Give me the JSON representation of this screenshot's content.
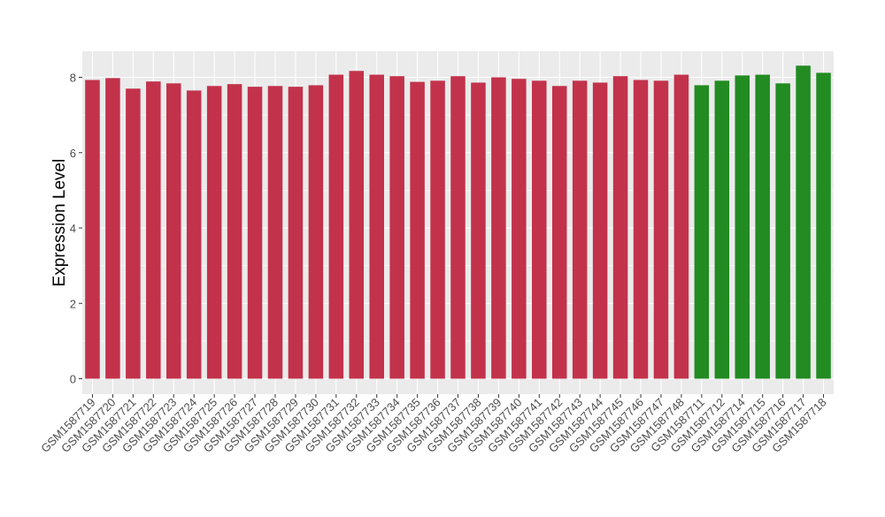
{
  "chart_data": {
    "type": "bar",
    "title": "",
    "xlabel": "",
    "ylabel": "Expression Level",
    "ylim": [
      0,
      8.7
    ],
    "yticks": [
      0,
      2,
      4,
      6,
      8
    ],
    "grid": true,
    "categories": [
      "GSM1587719",
      "GSM1587720",
      "GSM1587721",
      "GSM1587722",
      "GSM1587723",
      "GSM1587724",
      "GSM1587725",
      "GSM1587726",
      "GSM1587727",
      "GSM1587728",
      "GSM1587729",
      "GSM1587730",
      "GSM1587731",
      "GSM1587732",
      "GSM1587733",
      "GSM1587734",
      "GSM1587735",
      "GSM1587736",
      "GSM1587737",
      "GSM1587738",
      "GSM1587739",
      "GSM1587740",
      "GSM1587741",
      "GSM1587742",
      "GSM1587743",
      "GSM1587744",
      "GSM1587745",
      "GSM1587746",
      "GSM1587747",
      "GSM1587748",
      "GSM1587711",
      "GSM1587712",
      "GSM1587714",
      "GSM1587715",
      "GSM1587716",
      "GSM1587717",
      "GSM1587718"
    ],
    "values": [
      7.93,
      7.98,
      7.7,
      7.89,
      7.84,
      7.65,
      7.77,
      7.82,
      7.75,
      7.77,
      7.75,
      7.79,
      8.07,
      8.17,
      8.07,
      8.03,
      7.88,
      7.91,
      8.03,
      7.86,
      8.0,
      7.96,
      7.91,
      7.77,
      7.91,
      7.86,
      8.03,
      7.93,
      7.91,
      8.07,
      7.79,
      7.91,
      8.05,
      8.07,
      7.84,
      8.31,
      8.12
    ],
    "groups": [
      "a",
      "a",
      "a",
      "a",
      "a",
      "a",
      "a",
      "a",
      "a",
      "a",
      "a",
      "a",
      "a",
      "a",
      "a",
      "a",
      "a",
      "a",
      "a",
      "a",
      "a",
      "a",
      "a",
      "a",
      "a",
      "a",
      "a",
      "a",
      "a",
      "a",
      "b",
      "b",
      "b",
      "b",
      "b",
      "b",
      "b"
    ],
    "colors": {
      "a": "#c2324b",
      "b": "#228b22"
    },
    "panel_background": "#ebebeb",
    "gridline_color": "#ffffff"
  }
}
